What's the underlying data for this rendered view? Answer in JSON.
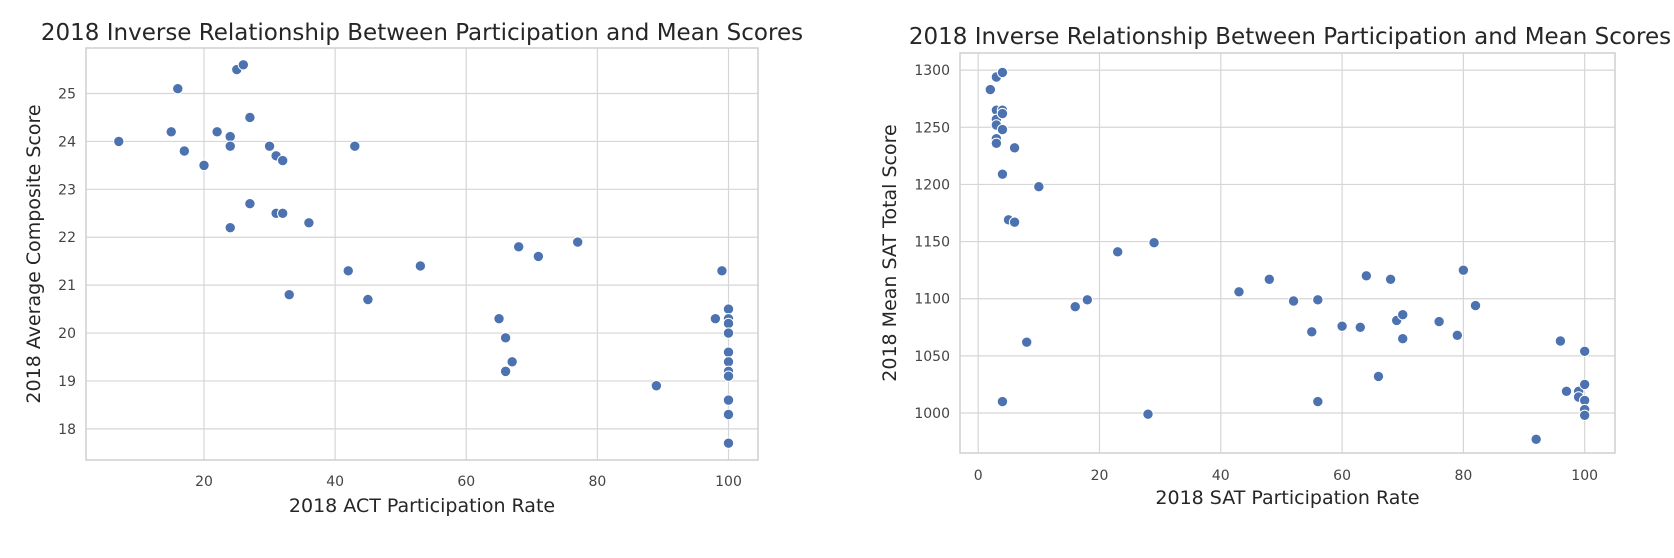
{
  "colors": {
    "point": "#4c72b0",
    "grid": "#d6d6d6",
    "text": "#262626"
  },
  "chart_data": [
    {
      "type": "scatter",
      "title": "2018 Inverse Relationship Between Participation and Mean Scores",
      "xlabel": "2018 ACT Participation Rate",
      "ylabel": "2018 Average Composite Score",
      "xlim": [
        2,
        104.5
      ],
      "ylim": [
        17.35,
        25.95
      ],
      "xticks": [
        20,
        40,
        60,
        80,
        100
      ],
      "yticks": [
        18,
        19,
        20,
        21,
        22,
        23,
        24,
        25
      ],
      "grid": true,
      "points": [
        [
          7,
          24.0
        ],
        [
          15,
          24.2
        ],
        [
          16,
          25.1
        ],
        [
          17,
          23.8
        ],
        [
          20,
          23.5
        ],
        [
          22,
          24.2
        ],
        [
          24,
          24.1
        ],
        [
          24,
          23.9
        ],
        [
          24,
          22.2
        ],
        [
          25,
          25.5
        ],
        [
          26,
          25.6
        ],
        [
          27,
          24.5
        ],
        [
          27,
          22.7
        ],
        [
          30,
          23.9
        ],
        [
          31,
          23.7
        ],
        [
          31,
          22.5
        ],
        [
          32,
          23.6
        ],
        [
          32,
          22.5
        ],
        [
          33,
          20.8
        ],
        [
          36,
          22.3
        ],
        [
          42,
          21.3
        ],
        [
          43,
          23.9
        ],
        [
          45,
          20.7
        ],
        [
          53,
          21.4
        ],
        [
          65,
          20.3
        ],
        [
          66,
          19.9
        ],
        [
          66,
          19.2
        ],
        [
          67,
          19.4
        ],
        [
          68,
          21.8
        ],
        [
          71,
          21.6
        ],
        [
          77,
          21.9
        ],
        [
          89,
          18.9
        ],
        [
          98,
          20.3
        ],
        [
          99,
          21.3
        ],
        [
          100,
          20.5
        ],
        [
          100,
          20.3
        ],
        [
          100,
          20.2
        ],
        [
          100,
          20.0
        ],
        [
          100,
          19.6
        ],
        [
          100,
          19.4
        ],
        [
          100,
          19.2
        ],
        [
          100,
          19.1
        ],
        [
          100,
          18.6
        ],
        [
          100,
          18.3
        ],
        [
          100,
          17.7
        ]
      ]
    },
    {
      "type": "scatter",
      "title": "2018 Inverse Relationship Between Participation and Mean Scores",
      "xlabel": "2018 SAT Participation Rate",
      "ylabel": "2018 Mean SAT Total Score",
      "xlim": [
        -3,
        105
      ],
      "ylim": [
        965,
        1315
      ],
      "xticks": [
        0,
        20,
        40,
        60,
        80,
        100
      ],
      "yticks": [
        1000,
        1050,
        1100,
        1150,
        1200,
        1250,
        1300
      ],
      "grid": true,
      "points": [
        [
          2,
          1283
        ],
        [
          3,
          1294
        ],
        [
          3,
          1265
        ],
        [
          3,
          1257
        ],
        [
          3,
          1252
        ],
        [
          3,
          1240
        ],
        [
          3,
          1236
        ],
        [
          4,
          1298
        ],
        [
          4,
          1265
        ],
        [
          4,
          1262
        ],
        [
          4,
          1248
        ],
        [
          4,
          1209
        ],
        [
          4,
          1010
        ],
        [
          5,
          1169
        ],
        [
          6,
          1232
        ],
        [
          6,
          1167
        ],
        [
          8,
          1062
        ],
        [
          10,
          1198
        ],
        [
          16,
          1093
        ],
        [
          18,
          1099
        ],
        [
          23,
          1141
        ],
        [
          28,
          999
        ],
        [
          29,
          1149
        ],
        [
          43,
          1106
        ],
        [
          48,
          1117
        ],
        [
          52,
          1098
        ],
        [
          55,
          1071
        ],
        [
          56,
          1099
        ],
        [
          56,
          1010
        ],
        [
          60,
          1076
        ],
        [
          63,
          1075
        ],
        [
          64,
          1120
        ],
        [
          66,
          1032
        ],
        [
          68,
          1117
        ],
        [
          69,
          1081
        ],
        [
          70,
          1086
        ],
        [
          70,
          1065
        ],
        [
          76,
          1080
        ],
        [
          79,
          1068
        ],
        [
          80,
          1125
        ],
        [
          82,
          1094
        ],
        [
          92,
          977
        ],
        [
          96,
          1063
        ],
        [
          97,
          1019
        ],
        [
          99,
          1019
        ],
        [
          99,
          1014
        ],
        [
          100,
          1054
        ],
        [
          100,
          1025
        ],
        [
          100,
          1011
        ],
        [
          100,
          1003
        ],
        [
          100,
          998
        ]
      ]
    }
  ]
}
